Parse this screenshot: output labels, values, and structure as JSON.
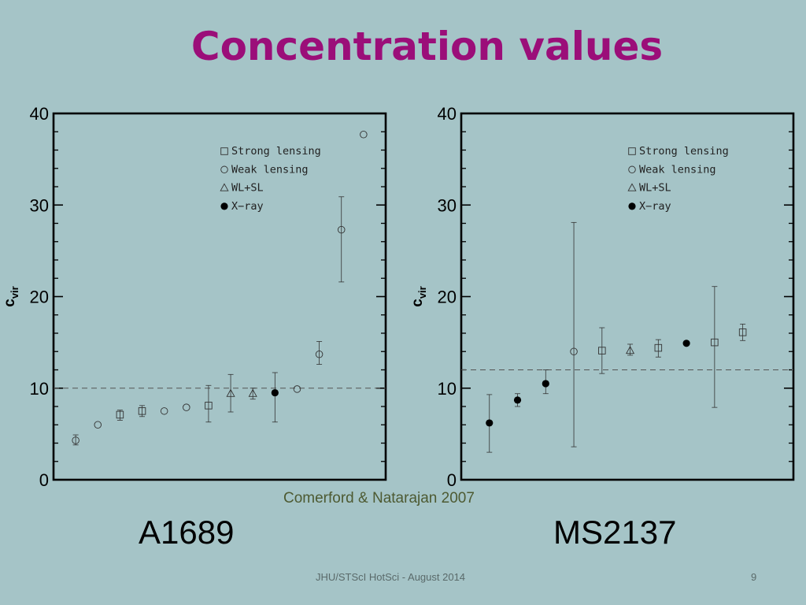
{
  "slide": {
    "title": "Concentration values",
    "credit": "Comerford & Natarajan 2007",
    "footer": "JHU/STScI HotSci -  August 2014",
    "page_number": "9"
  },
  "colors": {
    "background": "#a5c4c7",
    "title": "#9b0e79",
    "credit": "#4d5a32"
  },
  "chart_data": [
    {
      "type": "scatter",
      "panel_label": "A1689",
      "ylabel": "c",
      "ylabel_sub": "vir",
      "ylim": [
        0,
        40
      ],
      "yticks": [
        0,
        10,
        20,
        30,
        40
      ],
      "xlim": [
        0,
        15
      ],
      "reference_line": 10,
      "legend_position": "top-right",
      "legend": [
        {
          "marker": "square",
          "label": "Strong lensing"
        },
        {
          "marker": "circle",
          "label": "Weak lensing"
        },
        {
          "marker": "triangle",
          "label": "WL+SL"
        },
        {
          "marker": "filled-circle",
          "label": "X−ray"
        }
      ],
      "points": [
        {
          "x": 1,
          "y": 4.3,
          "err": [
            3.8,
            4.9
          ],
          "marker": "circle"
        },
        {
          "x": 2,
          "y": 6.0,
          "marker": "circle"
        },
        {
          "x": 3,
          "y": 7.1,
          "err": [
            6.5,
            7.6
          ],
          "marker": "square"
        },
        {
          "x": 4,
          "y": 7.5,
          "err": [
            6.9,
            8.1
          ],
          "marker": "square"
        },
        {
          "x": 5,
          "y": 7.5,
          "marker": "circle"
        },
        {
          "x": 6,
          "y": 7.9,
          "marker": "circle"
        },
        {
          "x": 7,
          "y": 8.1,
          "err": [
            6.3,
            10.3
          ],
          "marker": "square"
        },
        {
          "x": 8,
          "y": 9.4,
          "err": [
            7.4,
            11.5
          ],
          "marker": "triangle"
        },
        {
          "x": 9,
          "y": 9.4,
          "err": [
            8.8,
            10.0
          ],
          "marker": "triangle"
        },
        {
          "x": 10,
          "y": 9.5,
          "err": [
            6.3,
            11.7
          ],
          "marker": "filled-circle"
        },
        {
          "x": 11,
          "y": 9.9,
          "marker": "circle"
        },
        {
          "x": 12,
          "y": 13.7,
          "err": [
            12.6,
            15.1
          ],
          "marker": "circle"
        },
        {
          "x": 13,
          "y": 27.3,
          "err": [
            21.6,
            30.9
          ],
          "marker": "circle"
        },
        {
          "x": 14,
          "y": 37.7,
          "marker": "circle"
        }
      ]
    },
    {
      "type": "scatter",
      "panel_label": "MS2137",
      "ylabel": "c",
      "ylabel_sub": "vir",
      "ylim": [
        0,
        40
      ],
      "yticks": [
        0,
        10,
        20,
        30,
        40
      ],
      "xlim": [
        0,
        11.8
      ],
      "reference_line": 12,
      "legend_position": "top-right",
      "legend": [
        {
          "marker": "square",
          "label": "Strong lensing"
        },
        {
          "marker": "circle",
          "label": "Weak lensing"
        },
        {
          "marker": "triangle",
          "label": "WL+SL"
        },
        {
          "marker": "filled-circle",
          "label": "X−ray"
        }
      ],
      "points": [
        {
          "x": 1,
          "y": 6.2,
          "err": [
            3.0,
            9.3
          ],
          "marker": "filled-circle"
        },
        {
          "x": 2,
          "y": 8.7,
          "err": [
            8.0,
            9.4
          ],
          "marker": "filled-circle"
        },
        {
          "x": 3,
          "y": 10.5,
          "err": [
            9.4,
            12.0
          ],
          "marker": "filled-circle"
        },
        {
          "x": 4,
          "y": 14.0,
          "err": [
            3.6,
            28.1
          ],
          "marker": "circle"
        },
        {
          "x": 5,
          "y": 14.1,
          "err": [
            11.6,
            16.6
          ],
          "marker": "square"
        },
        {
          "x": 6,
          "y": 14.1,
          "err": [
            13.6,
            14.8
          ],
          "marker": "triangle"
        },
        {
          "x": 7,
          "y": 14.4,
          "err": [
            13.4,
            15.3
          ],
          "marker": "square"
        },
        {
          "x": 8,
          "y": 14.9,
          "marker": "filled-circle"
        },
        {
          "x": 9,
          "y": 15.0,
          "err": [
            7.9,
            21.1
          ],
          "marker": "square"
        },
        {
          "x": 10,
          "y": 16.1,
          "err": [
            15.2,
            17.0
          ],
          "marker": "square"
        }
      ]
    }
  ]
}
